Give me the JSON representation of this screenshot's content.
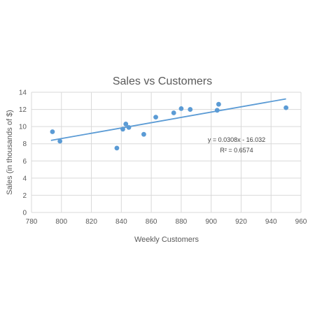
{
  "chart_data": {
    "type": "scatter",
    "title": "Sales  vs Customers",
    "xlabel": "Weekly Customers",
    "ylabel": "Sales (in thousands of $)",
    "xlim": [
      780,
      960
    ],
    "ylim": [
      0,
      14
    ],
    "x_ticks": [
      780,
      800,
      820,
      840,
      860,
      880,
      900,
      920,
      940,
      960
    ],
    "y_ticks": [
      0,
      2,
      4,
      6,
      8,
      10,
      12,
      14
    ],
    "grid": true,
    "legend": "none",
    "series": [
      {
        "points": [
          {
            "x": 794,
            "y": 9.4
          },
          {
            "x": 799,
            "y": 8.3
          },
          {
            "x": 837,
            "y": 7.5
          },
          {
            "x": 841,
            "y": 9.7
          },
          {
            "x": 843,
            "y": 10.3
          },
          {
            "x": 845,
            "y": 9.9
          },
          {
            "x": 855,
            "y": 9.1
          },
          {
            "x": 863,
            "y": 11.1
          },
          {
            "x": 875,
            "y": 11.6
          },
          {
            "x": 880,
            "y": 12.1
          },
          {
            "x": 886,
            "y": 12.0
          },
          {
            "x": 904,
            "y": 11.9
          },
          {
            "x": 905,
            "y": 12.6
          },
          {
            "x": 950,
            "y": 12.2
          }
        ],
        "color": "#5b9bd5"
      }
    ],
    "trendline": {
      "slope": 0.0308,
      "intercept": -16.032,
      "x_range": [
        793,
        950
      ],
      "equation_label": "y = 0.0308x - 16.032",
      "r2_label": "R² = 0.6574",
      "color": "#5b9bd5"
    }
  },
  "colors": {
    "grid": "#d9d9d9",
    "point": "#5b9bd5",
    "trendline": "#5b9bd5"
  }
}
